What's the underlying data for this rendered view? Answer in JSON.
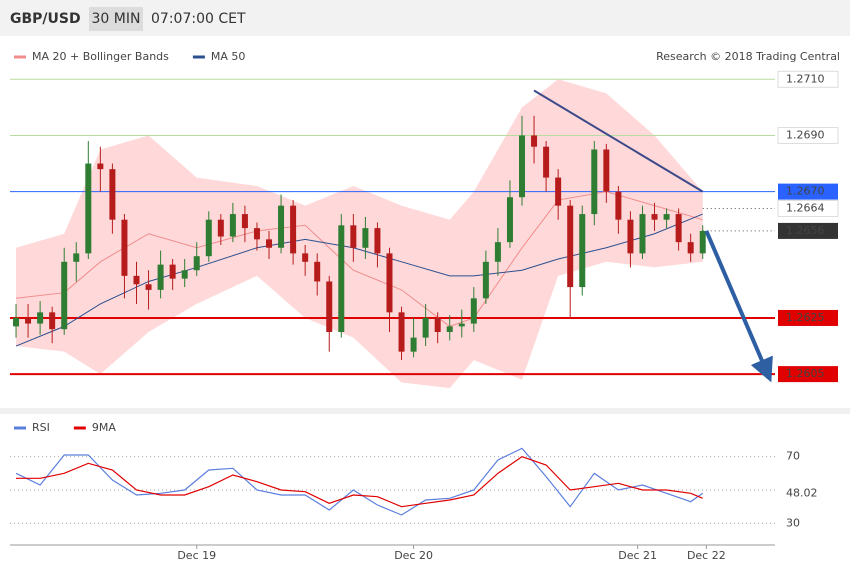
{
  "header": {
    "symbol": "GBP/USD",
    "interval": "30 MIN",
    "time": "07:07:00 CET"
  },
  "chart_data": [
    {
      "type": "candlestick",
      "copyright": "Research © 2018 Trading Central",
      "xlim": [
        -0.5,
        63
      ],
      "ylim": [
        1.2594,
        1.2724
      ],
      "up_color": "#2e7d32",
      "down_color": "#b71c1c",
      "band_color": "#ffd9d9",
      "x": [
        0,
        1,
        2,
        3,
        4,
        5,
        6,
        7,
        8,
        9,
        10,
        11,
        12,
        13,
        14,
        15,
        16,
        17,
        18,
        19,
        20,
        21,
        22,
        23,
        24,
        25,
        26,
        27,
        28,
        29,
        30,
        31,
        32,
        33,
        34,
        35,
        36,
        37,
        38,
        39,
        40,
        41,
        42,
        43,
        44,
        45,
        46,
        47,
        48,
        49,
        50,
        51,
        52,
        53,
        54,
        55,
        56,
        57
      ],
      "open": [
        1.2622,
        1.2625,
        1.2623,
        1.2627,
        1.2621,
        1.2645,
        1.2648,
        1.268,
        1.2678,
        1.266,
        1.264,
        1.2637,
        1.2635,
        1.2644,
        1.2639,
        1.2642,
        1.2647,
        1.266,
        1.2654,
        1.2662,
        1.2657,
        1.2653,
        1.265,
        1.2665,
        1.2648,
        1.2645,
        1.2638,
        1.262,
        1.2658,
        1.265,
        1.2657,
        1.2648,
        1.2627,
        1.2613,
        1.2618,
        1.2625,
        1.262,
        1.2622,
        1.2623,
        1.2632,
        1.2645,
        1.2652,
        1.2668,
        1.269,
        1.2686,
        1.2675,
        1.2665,
        1.2636,
        1.2662,
        1.2685,
        1.267,
        1.266,
        1.2648,
        1.2662,
        1.266,
        1.2662,
        1.2652,
        1.2648
      ],
      "high": [
        1.263,
        1.263,
        1.2631,
        1.2629,
        1.265,
        1.2652,
        1.2688,
        1.2686,
        1.268,
        1.2662,
        1.2645,
        1.2642,
        1.2649,
        1.2646,
        1.2646,
        1.2652,
        1.2663,
        1.2662,
        1.2666,
        1.2665,
        1.2659,
        1.2656,
        1.2669,
        1.2667,
        1.2651,
        1.2648,
        1.264,
        1.2662,
        1.2662,
        1.2661,
        1.2659,
        1.265,
        1.2629,
        1.2625,
        1.263,
        1.2627,
        1.2626,
        1.2628,
        1.2636,
        1.2649,
        1.2657,
        1.2674,
        1.2697,
        1.2697,
        1.2688,
        1.2678,
        1.2667,
        1.2665,
        1.2688,
        1.2687,
        1.2672,
        1.2663,
        1.2665,
        1.2666,
        1.2664,
        1.2664,
        1.2655,
        1.2658
      ],
      "low": [
        1.2618,
        1.2618,
        1.2619,
        1.2616,
        1.2619,
        1.2638,
        1.2646,
        1.267,
        1.2655,
        1.2632,
        1.263,
        1.2628,
        1.2632,
        1.2635,
        1.2636,
        1.264,
        1.2645,
        1.2651,
        1.2652,
        1.2652,
        1.2649,
        1.2646,
        1.2648,
        1.2644,
        1.264,
        1.2633,
        1.2613,
        1.2618,
        1.2645,
        1.2646,
        1.2643,
        1.262,
        1.261,
        1.2611,
        1.2615,
        1.2616,
        1.2617,
        1.2618,
        1.262,
        1.263,
        1.264,
        1.265,
        1.2665,
        1.268,
        1.267,
        1.266,
        1.2625,
        1.2633,
        1.2658,
        1.2666,
        1.2655,
        1.2643,
        1.2646,
        1.2656,
        1.2657,
        1.2649,
        1.2645,
        1.2646
      ],
      "close": [
        1.2625,
        1.2623,
        1.2627,
        1.2621,
        1.2645,
        1.2648,
        1.268,
        1.2678,
        1.266,
        1.264,
        1.2637,
        1.2635,
        1.2644,
        1.2639,
        1.2642,
        1.2647,
        1.266,
        1.2654,
        1.2662,
        1.2657,
        1.2653,
        1.265,
        1.2665,
        1.2648,
        1.2645,
        1.2638,
        1.262,
        1.2658,
        1.265,
        1.2657,
        1.2648,
        1.2627,
        1.2613,
        1.2618,
        1.2625,
        1.262,
        1.2622,
        1.2623,
        1.2632,
        1.2645,
        1.2652,
        1.2668,
        1.269,
        1.2686,
        1.2675,
        1.2665,
        1.2636,
        1.2662,
        1.2685,
        1.267,
        1.266,
        1.2648,
        1.2662,
        1.266,
        1.2662,
        1.2652,
        1.2648,
        1.2656
      ],
      "series": [
        {
          "name": "MA 20 + Bollinger Bands",
          "color": "#f08c8c",
          "x": [
            0,
            4,
            7,
            11,
            15,
            20,
            24,
            28,
            32,
            36,
            38,
            42,
            45,
            49,
            53,
            57
          ],
          "values": [
            1.2632,
            1.2634,
            1.2645,
            1.2655,
            1.265,
            1.2656,
            1.2658,
            1.2642,
            1.2635,
            1.2622,
            1.2625,
            1.265,
            1.2667,
            1.267,
            1.2665,
            1.266
          ],
          "upper": [
            1.265,
            1.2655,
            1.2685,
            1.269,
            1.2675,
            1.2672,
            1.2665,
            1.2672,
            1.2665,
            1.266,
            1.267,
            1.27,
            1.271,
            1.2705,
            1.269,
            1.267
          ],
          "lower": [
            1.2615,
            1.2613,
            1.2605,
            1.262,
            1.263,
            1.264,
            1.2625,
            1.2618,
            1.2602,
            1.26,
            1.261,
            1.2603,
            1.264,
            1.2645,
            1.2643,
            1.2645
          ]
        },
        {
          "name": "MA 50",
          "color": "#2b4f8f",
          "x": [
            0,
            4,
            7,
            11,
            15,
            20,
            24,
            28,
            32,
            36,
            38,
            42,
            45,
            49,
            53,
            57
          ],
          "values": [
            1.2615,
            1.2622,
            1.263,
            1.2638,
            1.2643,
            1.265,
            1.2653,
            1.265,
            1.2645,
            1.264,
            1.264,
            1.2642,
            1.2646,
            1.265,
            1.2655,
            1.2662
          ]
        }
      ],
      "levels": [
        {
          "value": 1.271,
          "label": "1.2710",
          "color": "#b8dca0",
          "label_color": "#4f9a1a",
          "label_fill": "#ffffff",
          "dotted": false
        },
        {
          "value": 1.269,
          "label": "1.2690",
          "color": "#b8dca0",
          "label_color": "#4f9a1a",
          "label_fill": "#ffffff",
          "dotted": false
        },
        {
          "value": 1.267,
          "label": "1.2670",
          "color": "#2962ff",
          "label_color": "#ffffff",
          "label_fill": "#2962ff",
          "dotted": false
        },
        {
          "value": 1.2664,
          "label": "1.2664",
          "color": "#555555",
          "label_color": "#222222",
          "label_fill": "#ffffff",
          "dotted": true
        },
        {
          "value": 1.2656,
          "label": "1.2656",
          "color": "#555555",
          "label_color": "#ffffff",
          "label_fill": "#333333",
          "dotted": true
        },
        {
          "value": 1.2625,
          "label": "1.2625",
          "color": "#e00000",
          "label_color": "#ffffff",
          "label_fill": "#e00000",
          "dotted": false
        },
        {
          "value": 1.2605,
          "label": "1.2605",
          "color": "#e00000",
          "label_color": "#ffffff",
          "label_fill": "#e00000",
          "dotted": false
        }
      ],
      "trend_line": {
        "color": "#3c4a8a",
        "x": [
          43,
          57
        ],
        "y": [
          1.2706,
          1.267
        ]
      },
      "projection": {
        "color": "#2e5fa3",
        "x": [
          57.3,
          62.3
        ],
        "y": [
          1.2656,
          1.2606
        ]
      }
    },
    {
      "type": "line",
      "xlim": [
        -0.5,
        63
      ],
      "ylim": [
        20,
        95
      ],
      "yticks": [
        30,
        70
      ],
      "reference_line": 50,
      "grid": true,
      "xticks": [
        {
          "value": 15,
          "label": "Dec 19"
        },
        {
          "value": 33,
          "label": "Dec 20"
        },
        {
          "value": 51.6,
          "label": "Dec 21"
        },
        {
          "value": 57.3,
          "label": "Dec 22"
        }
      ],
      "series": [
        {
          "name": "RSI",
          "color": "#5b7fde",
          "x": [
            0,
            2,
            4,
            6,
            8,
            10,
            12,
            14,
            16,
            18,
            20,
            22,
            24,
            26,
            28,
            30,
            32,
            34,
            36,
            38,
            40,
            42,
            44,
            46,
            48,
            50,
            52,
            54,
            56,
            57
          ],
          "values": [
            60,
            53,
            71,
            71,
            56,
            47,
            48,
            50,
            62,
            63,
            50,
            47,
            47,
            38,
            50,
            41,
            35,
            44,
            45,
            50,
            68,
            75,
            58,
            40,
            60,
            50,
            53,
            48,
            43,
            48.02
          ]
        },
        {
          "name": "9MA",
          "color": "#e00000",
          "x": [
            0,
            2,
            4,
            6,
            8,
            10,
            12,
            14,
            16,
            18,
            20,
            22,
            24,
            26,
            28,
            30,
            32,
            34,
            36,
            38,
            40,
            42,
            44,
            46,
            48,
            50,
            52,
            54,
            56,
            57
          ],
          "values": [
            57,
            57,
            60,
            66,
            62,
            50,
            47,
            47,
            52,
            59,
            55,
            50,
            49,
            42,
            47,
            46,
            40,
            42,
            44,
            47,
            60,
            70,
            65,
            50,
            52,
            54,
            50,
            50,
            48,
            45
          ]
        }
      ]
    }
  ]
}
